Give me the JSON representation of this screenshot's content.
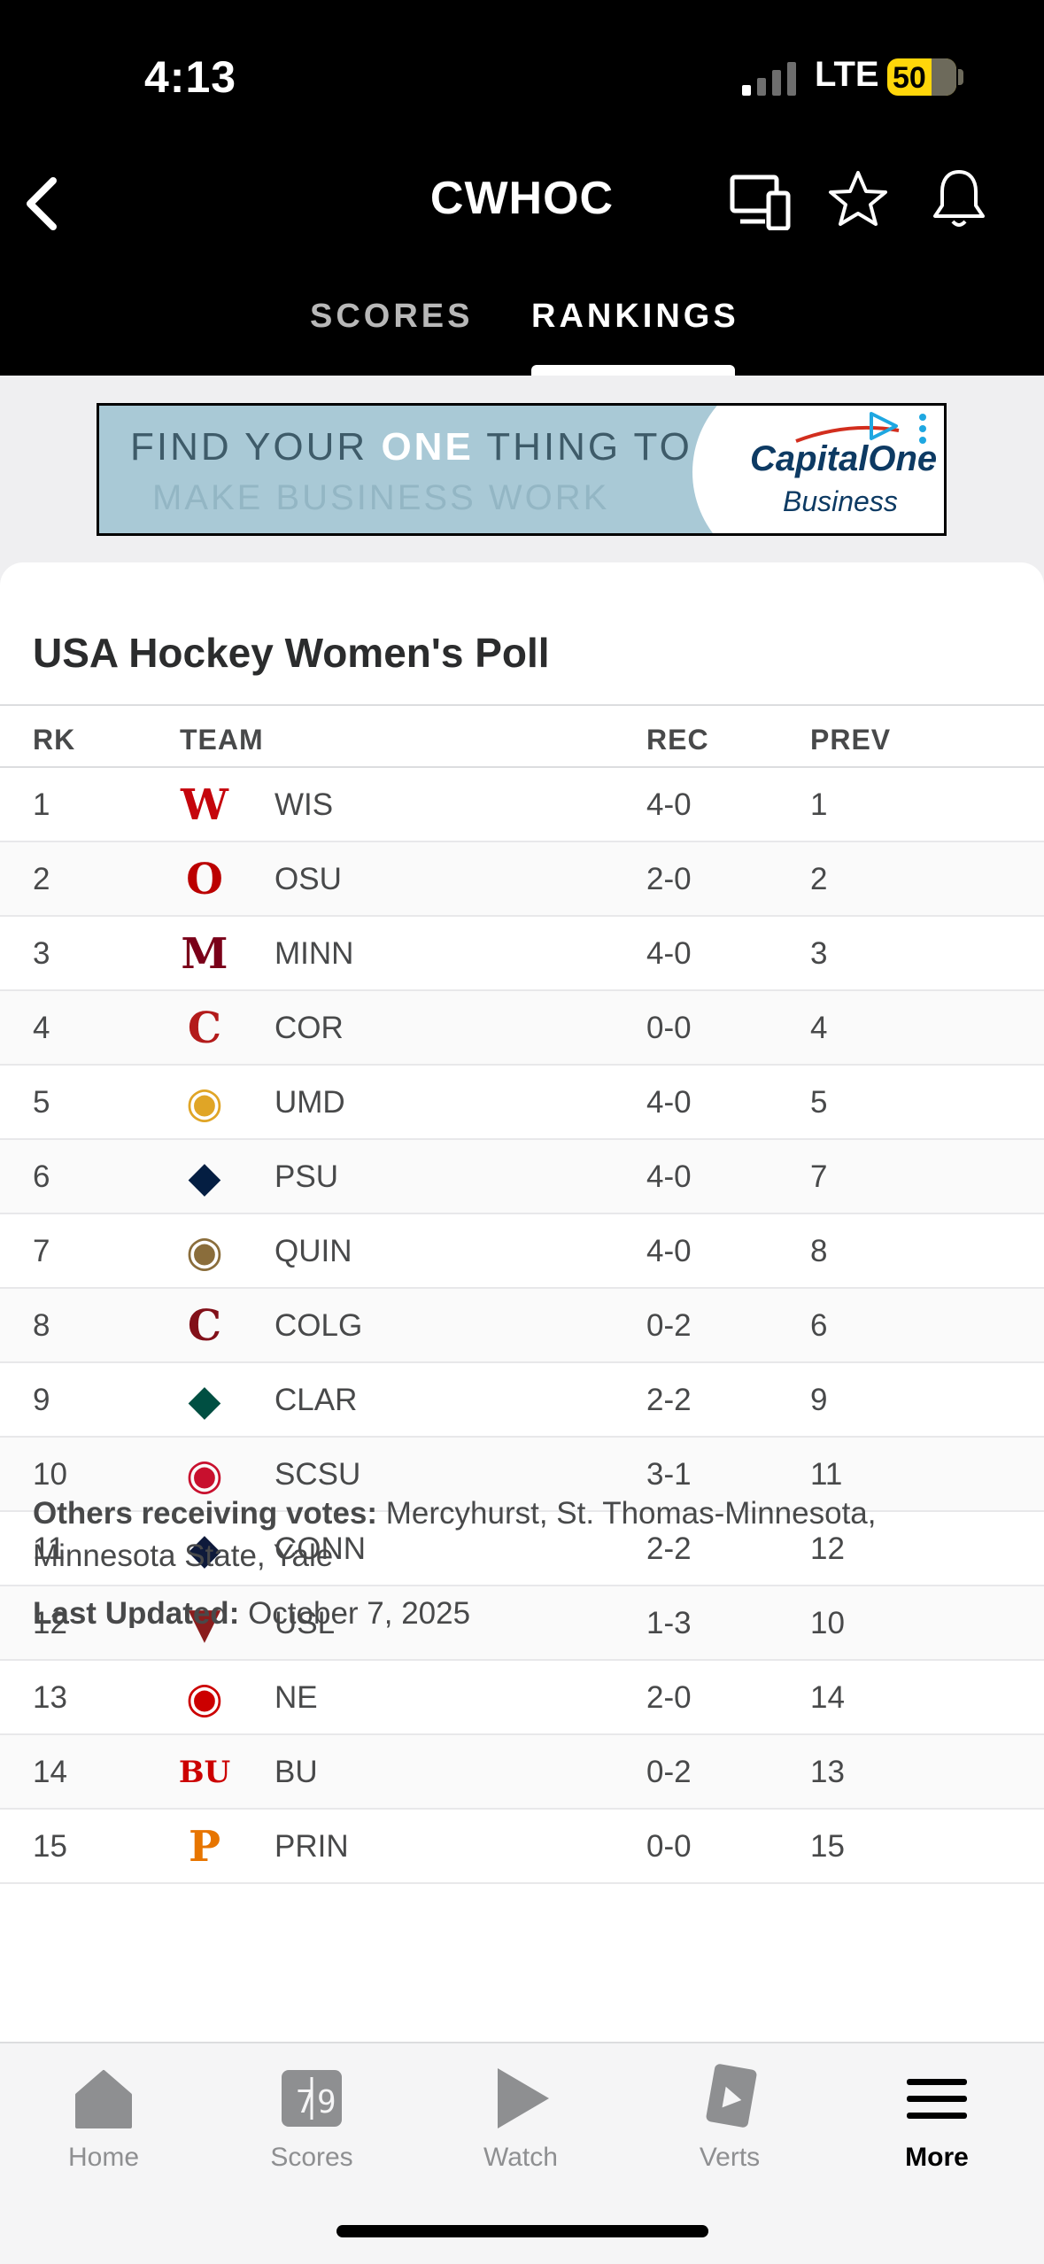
{
  "status_bar": {
    "time": "4:13",
    "network": "LTE",
    "battery": "50"
  },
  "header": {
    "title": "CWHOC"
  },
  "tabs": [
    {
      "label": "SCORES",
      "active": false
    },
    {
      "label": "RANKINGS",
      "active": true
    }
  ],
  "ad": {
    "line1_pre": "FIND YOUR ",
    "line1_bold": "ONE",
    "line1_post": " THING TO",
    "line2": "MAKE BUSINESS WORK",
    "brand": "CapitalOne",
    "brand_sub": "Business"
  },
  "poll": {
    "title": "USA Hockey Women's Poll",
    "columns": {
      "rank": "RK",
      "team": "TEAM",
      "record": "REC",
      "previous": "PREV"
    },
    "rows": [
      {
        "rank": "1",
        "team": "WIS",
        "record": "4-0",
        "prev": "1",
        "logo_icon": "wisconsin-w-icon",
        "logo_color": "#c5050c",
        "logo_glyph": "W"
      },
      {
        "rank": "2",
        "team": "OSU",
        "record": "2-0",
        "prev": "2",
        "logo_icon": "ohio-state-icon",
        "logo_color": "#bb0000",
        "logo_glyph": "O"
      },
      {
        "rank": "3",
        "team": "MINN",
        "record": "4-0",
        "prev": "3",
        "logo_icon": "minnesota-m-icon",
        "logo_color": "#7a0019",
        "logo_glyph": "M"
      },
      {
        "rank": "4",
        "team": "COR",
        "record": "0-0",
        "prev": "4",
        "logo_icon": "cornell-icon",
        "logo_color": "#b31b1b",
        "logo_glyph": "C"
      },
      {
        "rank": "5",
        "team": "UMD",
        "record": "4-0",
        "prev": "5",
        "logo_icon": "bulldog-icon",
        "logo_color": "#e0a526",
        "logo_glyph": "◉"
      },
      {
        "rank": "6",
        "team": "PSU",
        "record": "4-0",
        "prev": "7",
        "logo_icon": "penn-state-icon",
        "logo_color": "#041e42",
        "logo_glyph": "◆"
      },
      {
        "rank": "7",
        "team": "QUIN",
        "record": "4-0",
        "prev": "8",
        "logo_icon": "bobcat-icon",
        "logo_color": "#8a6d3b",
        "logo_glyph": "◉"
      },
      {
        "rank": "8",
        "team": "COLG",
        "record": "0-2",
        "prev": "6",
        "logo_icon": "colgate-c-icon",
        "logo_color": "#821019",
        "logo_glyph": "C"
      },
      {
        "rank": "9",
        "team": "CLAR",
        "record": "2-2",
        "prev": "9",
        "logo_icon": "clarkson-icon",
        "logo_color": "#004f42",
        "logo_glyph": "◆"
      },
      {
        "rank": "10",
        "team": "SCSU",
        "record": "3-1",
        "prev": "11",
        "logo_icon": "st-cloud-state-icon",
        "logo_color": "#c8102e",
        "logo_glyph": "◉"
      },
      {
        "rank": "11",
        "team": "CONN",
        "record": "2-2",
        "prev": "12",
        "logo_icon": "husky-icon",
        "logo_color": "#0e1a3b",
        "logo_glyph": "◆"
      },
      {
        "rank": "12",
        "team": "USL",
        "record": "1-3",
        "prev": "10",
        "logo_icon": "st-lawrence-icon",
        "logo_color": "#8a1d1d",
        "logo_glyph": "▼"
      },
      {
        "rank": "13",
        "team": "NE",
        "record": "2-0",
        "prev": "14",
        "logo_icon": "northeastern-husky-icon",
        "logo_color": "#cc0000",
        "logo_glyph": "◉"
      },
      {
        "rank": "14",
        "team": "BU",
        "record": "0-2",
        "prev": "13",
        "logo_icon": "boston-university-icon",
        "logo_color": "#cc0000",
        "logo_glyph": "BU"
      },
      {
        "rank": "15",
        "team": "PRIN",
        "record": "0-0",
        "prev": "15",
        "logo_icon": "princeton-p-icon",
        "logo_color": "#e77500",
        "logo_glyph": "P"
      }
    ],
    "others_label": "Others receiving votes:",
    "others_value": " Mercyhurst, St. Thomas-Minnesota, Minnesota State, Yale",
    "updated_label": "Last Updated:",
    "updated_value": " October 7, 2025"
  },
  "bottom_nav": [
    {
      "label": "Home",
      "icon": "home-icon",
      "active": false
    },
    {
      "label": "Scores",
      "icon": "scoreboard-icon",
      "active": false
    },
    {
      "label": "Watch",
      "icon": "play-icon",
      "active": false
    },
    {
      "label": "Verts",
      "icon": "verts-icon",
      "active": false
    },
    {
      "label": "More",
      "icon": "menu-icon",
      "active": true
    }
  ],
  "colors": {
    "header_bg": "#000000",
    "card_bg": "#ffffff",
    "page_bg": "#efeff1",
    "text": "#48494a"
  }
}
